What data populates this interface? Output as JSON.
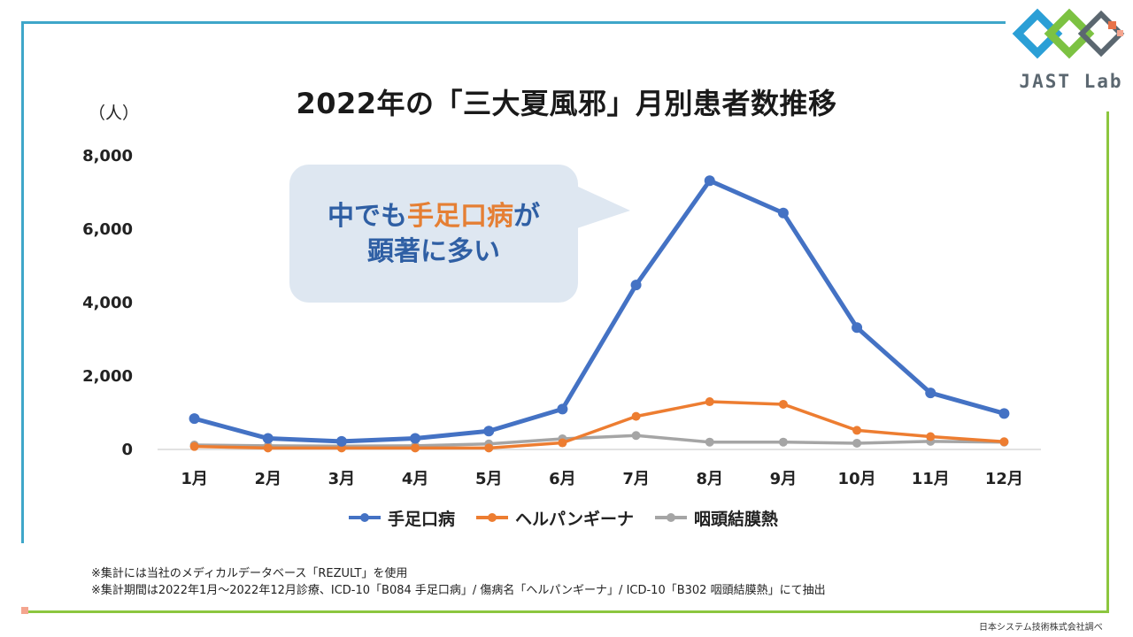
{
  "title": "2022年の「三大夏風邪」月別患者数推移",
  "unit": "（人）",
  "logo_text": "JAST Lab",
  "callout": {
    "line1_pre": "中でも",
    "line1_highlight": "手足口病",
    "line1_post": "が",
    "line2": "顕著に多い"
  },
  "notes": [
    "※集計には当社のメディカルデータベース「REZULT」を使用",
    "※集計期間は2022年1月〜2022年12月診療、ICD-10「B084 手足口病」/ 傷病名「ヘルパンギーナ」/ ICD-10「B302 咽頭結膜熱」にて抽出"
  ],
  "source": "日本システム技術株式会社調べ",
  "colors": {
    "blue": "#4472c4",
    "orange": "#ed7d31",
    "gray": "#a5a5a5",
    "frame_blue": "#3ea6c9",
    "frame_green": "#8cc63f"
  },
  "chart_data": {
    "type": "line",
    "title": "2022年の「三大夏風邪」月別患者数推移",
    "ylabel": "（人）",
    "xlabel": "",
    "categories": [
      "1月",
      "2月",
      "3月",
      "4月",
      "5月",
      "6月",
      "7月",
      "8月",
      "9月",
      "10月",
      "11月",
      "12月"
    ],
    "yticks": [
      0,
      2000,
      4000,
      6000,
      8000
    ],
    "ytick_labels": [
      "0",
      "2,000",
      "4,000",
      "6,000",
      "8,000"
    ],
    "ylim": [
      0,
      8000
    ],
    "grid": false,
    "legend": "bottom",
    "series": [
      {
        "name": "手足口病",
        "color": "#4472c4",
        "values": [
          840,
          300,
          220,
          300,
          500,
          1100,
          4480,
          7320,
          6440,
          3320,
          1540,
          980
        ]
      },
      {
        "name": "ヘルパンギーナ",
        "color": "#ed7d31",
        "values": [
          80,
          40,
          40,
          40,
          40,
          180,
          900,
          1300,
          1230,
          520,
          350,
          210
        ]
      },
      {
        "name": "咽頭結膜熱",
        "color": "#a5a5a5",
        "values": [
          120,
          100,
          90,
          100,
          150,
          290,
          380,
          200,
          200,
          170,
          220,
          200
        ]
      }
    ]
  }
}
